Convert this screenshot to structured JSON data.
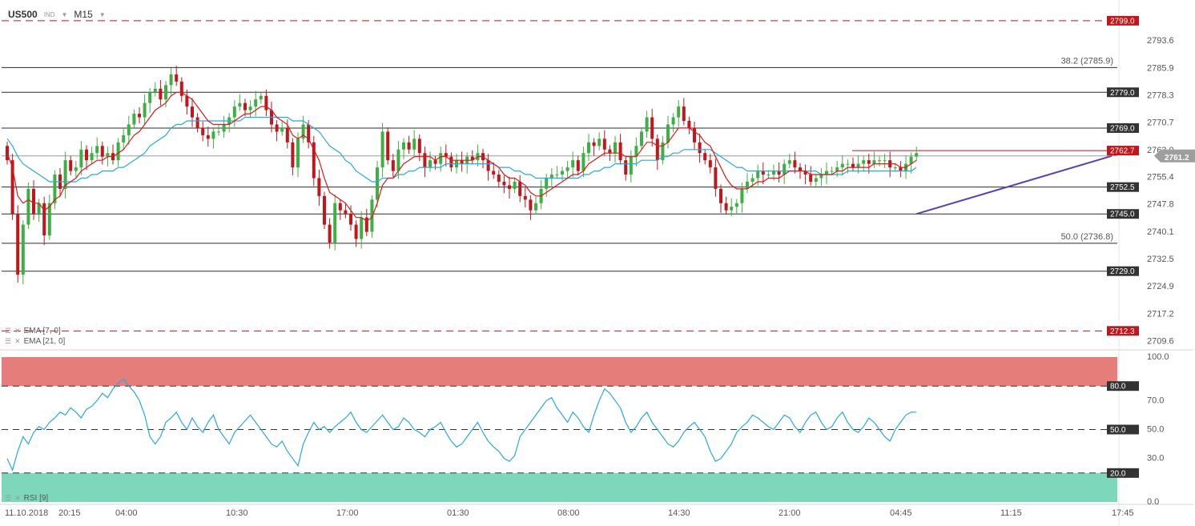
{
  "header": {
    "symbol": "US500",
    "symbol_type": "IND",
    "timeframe": "M15"
  },
  "colors": {
    "bull": "#3cb043",
    "bear": "#c0161c",
    "ema_fast": "#d81b1b",
    "ema_slow": "#29a8e0",
    "trendline": "#5a3fb0",
    "rsi_line": "#29a8e0",
    "rsi_overbought_zone": "#e57d7b",
    "rsi_oversold_zone": "#7dd8bb",
    "price_tag": "#c0161c",
    "level_tag": "#333333",
    "current_tag": "#9e9e9e"
  },
  "indicators": {
    "ema_fast_label": "EMA [7, 0]",
    "ema_slow_label": "EMA [21, 0]",
    "rsi_label": "RSI [9]"
  },
  "price_axis_labels": [
    "2793.6",
    "2785.9",
    "2778.3",
    "2770.7",
    "2763.0",
    "2755.4",
    "2747.8",
    "2740.1",
    "2732.5",
    "2724.9",
    "2717.2",
    "2709.6"
  ],
  "rsi_axis_labels": [
    "100.0",
    "70.0",
    "50.0",
    "30.0",
    "0.0"
  ],
  "time_labels": [
    "11.10.2018",
    "20:15",
    "04:00",
    "10:30",
    "17:00",
    "01:30",
    "08:00",
    "14:30",
    "21:00",
    "04:45",
    "11:15",
    "17:45"
  ],
  "levels": {
    "top_dashed": {
      "value": 2799.0,
      "label": "2799.0"
    },
    "fib_382": {
      "value": 2785.9,
      "label": "38.2 (2785.9)"
    },
    "r1": {
      "value": 2779.0,
      "label": "2779.0"
    },
    "r2": {
      "value": 2769.0,
      "label": "2769.0"
    },
    "resistance_short": {
      "value": 2762.7,
      "label": "2762.7"
    },
    "current": {
      "value": 2761.2,
      "label": "2761.2"
    },
    "s1": {
      "value": 2752.5,
      "label": "2752.5"
    },
    "s2": {
      "value": 2745.0,
      "label": "2745.0"
    },
    "fib_50": {
      "value": 2736.8,
      "label": "50.0 (2736.8)"
    },
    "s3": {
      "value": 2729.0,
      "label": "2729.0"
    },
    "bottom_dashed": {
      "value": 2712.3,
      "label": "2712.3"
    }
  },
  "rsi_levels": {
    "overbought": {
      "value": 80,
      "label": "80.0"
    },
    "mid": {
      "value": 50,
      "label": "50.0"
    },
    "oversold": {
      "value": 20,
      "label": "20.0"
    }
  },
  "trendline": {
    "from": {
      "bar": 172,
      "price": 2745.0
    },
    "to": {
      "bar": 236,
      "price": 2761.2
    }
  },
  "chart_data": {
    "type": "candlestick",
    "title": "",
    "symbol": "US500",
    "timeframe": "M15",
    "ylim": [
      2707.0,
      2803.0
    ],
    "rsi_ylim": [
      0,
      100
    ],
    "x_tick_labels": [
      "11.10.2018",
      "20:15",
      "04:00",
      "10:30",
      "17:00",
      "01:30",
      "08:00",
      "14:30",
      "21:00",
      "04:45",
      "11:15",
      "17:45"
    ],
    "close_series": [
      2760,
      2745,
      2728,
      2742,
      2752,
      2745,
      2748,
      2739,
      2748,
      2756,
      2752,
      2760,
      2757,
      2758,
      2763,
      2760,
      2762,
      2764,
      2761,
      2762,
      2760,
      2765,
      2767,
      2770,
      2773,
      2772,
      2776,
      2779,
      2780,
      2777,
      2781,
      2784,
      2782,
      2778,
      2775,
      2772,
      2769,
      2767,
      2766,
      2768,
      2768,
      2770,
      2772,
      2775,
      2776,
      2774,
      2775,
      2777,
      2778,
      2774,
      2770,
      2768,
      2769,
      2765,
      2758,
      2766,
      2770,
      2765,
      2755,
      2750,
      2742,
      2737,
      2748,
      2746,
      2745,
      2742,
      2738,
      2744,
      2740,
      2749,
      2758,
      2768,
      2760,
      2757,
      2763,
      2765,
      2763,
      2766,
      2762,
      2758,
      2760,
      2759,
      2762,
      2761,
      2758,
      2760,
      2759,
      2761,
      2760,
      2762,
      2760,
      2757,
      2756,
      2754,
      2753,
      2752,
      2754,
      2750,
      2749,
      2746,
      2748,
      2752,
      2755,
      2756,
      2756,
      2757,
      2758,
      2760,
      2757,
      2762,
      2765,
      2764,
      2766,
      2763,
      2762,
      2765,
      2760,
      2756,
      2761,
      2764,
      2768,
      2772,
      2766,
      2760,
      2765,
      2770,
      2772,
      2775,
      2771,
      2769,
      2765,
      2762,
      2760,
      2758,
      2752,
      2748,
      2746,
      2747,
      2748,
      2752,
      2754,
      2755,
      2757,
      2756,
      2756,
      2757,
      2756,
      2759,
      2760,
      2758,
      2757,
      2756,
      2754,
      2755,
      2756,
      2757,
      2757,
      2758,
      2759,
      2759,
      2758,
      2759,
      2760,
      2759,
      2760,
      2760,
      2760,
      2758,
      2758,
      2757,
      2759,
      2761,
      2762
    ],
    "ema7_series": [
      2762,
      2758,
      2750,
      2748,
      2749,
      2748,
      2748,
      2746,
      2747,
      2749,
      2750,
      2753,
      2754,
      2755,
      2757,
      2758,
      2759,
      2760,
      2760,
      2761,
      2761,
      2762,
      2763,
      2765,
      2767,
      2768,
      2770,
      2772,
      2774,
      2775,
      2776,
      2778,
      2779,
      2779,
      2778,
      2777,
      2775,
      2773,
      2771,
      2770,
      2770,
      2770,
      2770,
      2771,
      2772,
      2773,
      2773,
      2774,
      2775,
      2775,
      2774,
      2772,
      2771,
      2770,
      2767,
      2766,
      2767,
      2766,
      2763,
      2760,
      2755,
      2751,
      2750,
      2749,
      2748,
      2746,
      2744,
      2744,
      2743,
      2744,
      2748,
      2753,
      2755,
      2755,
      2757,
      2759,
      2760,
      2761,
      2761,
      2761,
      2761,
      2760,
      2761,
      2761,
      2760,
      2760,
      2760,
      2760,
      2760,
      2761,
      2761,
      2760,
      2759,
      2758,
      2756,
      2755,
      2755,
      2754,
      2753,
      2751,
      2750,
      2750,
      2751,
      2752,
      2753,
      2754,
      2755,
      2756,
      2756,
      2757,
      2759,
      2760,
      2761,
      2762,
      2762,
      2762,
      2762,
      2761,
      2761,
      2761,
      2763,
      2765,
      2765,
      2764,
      2764,
      2765,
      2767,
      2769,
      2769,
      2769,
      2768,
      2767,
      2765,
      2764,
      2761,
      2758,
      2755,
      2753,
      2752,
      2752,
      2752,
      2753,
      2754,
      2754,
      2755,
      2755,
      2755,
      2756,
      2757,
      2757,
      2757,
      2757,
      2756,
      2756,
      2756,
      2756,
      2756,
      2757,
      2757,
      2758,
      2758,
      2758,
      2758,
      2758,
      2759,
      2759,
      2759,
      2759,
      2759,
      2758,
      2758,
      2759,
      2760
    ],
    "ema21_series": [
      2766,
      2764,
      2761,
      2759,
      2758,
      2757,
      2756,
      2755,
      2754,
      2754,
      2754,
      2754,
      2754,
      2754,
      2755,
      2755,
      2756,
      2756,
      2757,
      2757,
      2757,
      2758,
      2758,
      2759,
      2760,
      2761,
      2762,
      2764,
      2765,
      2766,
      2767,
      2769,
      2770,
      2770,
      2771,
      2771,
      2771,
      2771,
      2771,
      2771,
      2771,
      2771,
      2771,
      2771,
      2771,
      2772,
      2772,
      2772,
      2772,
      2772,
      2772,
      2772,
      2772,
      2772,
      2771,
      2771,
      2771,
      2770,
      2769,
      2768,
      2766,
      2764,
      2763,
      2762,
      2760,
      2759,
      2757,
      2756,
      2755,
      2754,
      2754,
      2755,
      2755,
      2755,
      2756,
      2756,
      2757,
      2757,
      2758,
      2758,
      2758,
      2758,
      2758,
      2759,
      2759,
      2759,
      2759,
      2759,
      2759,
      2759,
      2759,
      2759,
      2759,
      2758,
      2758,
      2758,
      2757,
      2757,
      2756,
      2756,
      2755,
      2755,
      2755,
      2755,
      2755,
      2755,
      2755,
      2755,
      2755,
      2756,
      2756,
      2757,
      2757,
      2758,
      2758,
      2759,
      2759,
      2759,
      2759,
      2759,
      2760,
      2760,
      2760,
      2760,
      2761,
      2761,
      2762,
      2762,
      2763,
      2763,
      2763,
      2763,
      2763,
      2763,
      2762,
      2761,
      2760,
      2759,
      2758,
      2758,
      2757,
      2757,
      2757,
      2757,
      2757,
      2757,
      2757,
      2757,
      2757,
      2757,
      2757,
      2757,
      2757,
      2757,
      2756,
      2756,
      2756,
      2756,
      2756,
      2757,
      2757,
      2757,
      2757,
      2757,
      2757,
      2757,
      2757,
      2757,
      2757,
      2757,
      2757,
      2757,
      2758
    ],
    "rsi_series": [
      30,
      22,
      35,
      45,
      40,
      48,
      52,
      50,
      55,
      58,
      62,
      60,
      65,
      62,
      58,
      64,
      66,
      70,
      75,
      72,
      78,
      82,
      85,
      80,
      76,
      70,
      60,
      45,
      40,
      45,
      55,
      58,
      62,
      55,
      50,
      58,
      52,
      48,
      55,
      60,
      50,
      45,
      40,
      48,
      52,
      56,
      60,
      55,
      50,
      45,
      40,
      38,
      42,
      35,
      30,
      25,
      40,
      48,
      55,
      50,
      52,
      48,
      52,
      55,
      58,
      62,
      55,
      50,
      48,
      52,
      56,
      60,
      55,
      50,
      52,
      58,
      55,
      50,
      48,
      45,
      50,
      52,
      55,
      48,
      42,
      38,
      40,
      45,
      50,
      55,
      48,
      42,
      38,
      35,
      30,
      28,
      32,
      45,
      50,
      55,
      60,
      65,
      70,
      72,
      65,
      60,
      55,
      62,
      58,
      52,
      48,
      60,
      70,
      78,
      75,
      70,
      65,
      55,
      48,
      52,
      58,
      62,
      55,
      50,
      45,
      40,
      38,
      42,
      48,
      52,
      55,
      50,
      45,
      35,
      28,
      30,
      35,
      40,
      48,
      52,
      55,
      60,
      58,
      55,
      52,
      50,
      55,
      60,
      58,
      52,
      48,
      55,
      60,
      62,
      55,
      50,
      52,
      58,
      62,
      55,
      50,
      48,
      52,
      58,
      55,
      50,
      45,
      42,
      50,
      55,
      60,
      62,
      62
    ],
    "rsi_overbought": 80,
    "rsi_oversold": 20
  }
}
